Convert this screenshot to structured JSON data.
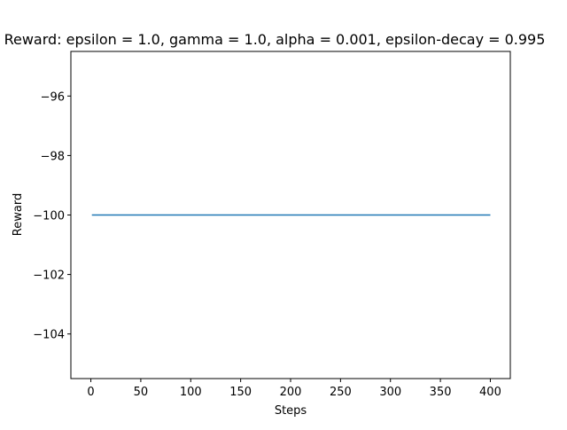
{
  "chart_data": {
    "type": "line",
    "title": "Reward: epsilon = 1.0, gamma = 1.0, alpha = 0.001, epsilon-decay = 0.995",
    "xlabel": "Steps",
    "ylabel": "Reward",
    "xlim": [
      -20,
      420
    ],
    "ylim": [
      -105.5,
      -94.5
    ],
    "xticks": [
      0,
      50,
      100,
      150,
      200,
      250,
      300,
      350,
      400
    ],
    "yticks": [
      -96,
      -98,
      -100,
      -102,
      -104
    ],
    "ytick_labels": [
      "−96",
      "−98",
      "−100",
      "−102",
      "−104"
    ],
    "grid": false,
    "series": [
      {
        "color": "#1f77b4",
        "x": [
          1,
          400
        ],
        "y": [
          -100,
          -100
        ]
      }
    ]
  }
}
